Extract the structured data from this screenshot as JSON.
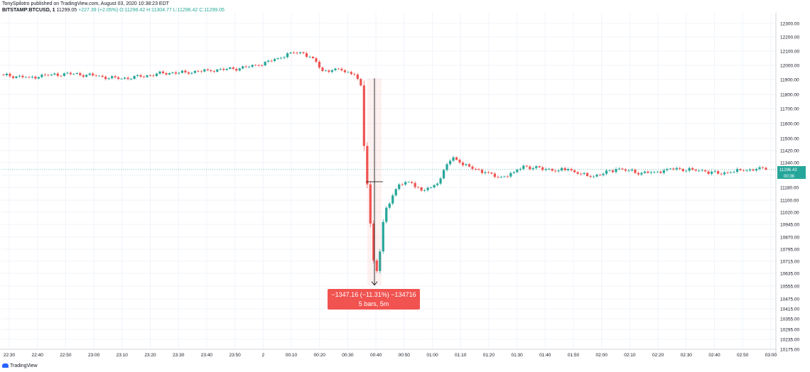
{
  "header": {
    "line1": "TonySpilotro published on TradingView.com, August 03, 2020 10:38:23 EDT",
    "symbol": "BITSTAMP:BTCUSD, 1",
    "last": "11299.05",
    "change": "+227.39 (+2.05%)",
    "ohlc": "O:11296.42 H:11304.77 L:11296.42 C:11299.05"
  },
  "measure": {
    "line1": "−1347.16 (−11.31%) −134716",
    "line2": "5 bars, 5m"
  },
  "price_tags": {
    "current": "11296.43",
    "countdown": "00:36"
  },
  "footer": {
    "brand": "TradingView"
  },
  "colors": {
    "up": "#26a69a",
    "down": "#ef5350",
    "measure_bg": "#f05350"
  },
  "chart_data": {
    "type": "candlestick",
    "y_ticks": [
      12300,
      12200,
      12100,
      12000,
      11900,
      11800,
      11700,
      11600,
      11500,
      11420,
      11340,
      11260,
      11180,
      11100,
      11020,
      10945,
      10870,
      10795,
      10715,
      10635,
      10555,
      10475,
      10415,
      10355,
      10295,
      10235,
      10175
    ],
    "y_tick_labels": [
      "12300.00",
      "12200.00",
      "12100.00",
      "12000.00",
      "11900.00",
      "11800.00",
      "11700.00",
      "11600.00",
      "11500.00",
      "11420.00",
      "11340.00",
      "11260.00",
      "11180.00",
      "11100.00",
      "11020.00",
      "10945.00",
      "10870.00",
      "10795.00",
      "10715.00",
      "10635.00",
      "10555.00",
      "10475.00",
      "10415.00",
      "10355.00",
      "10295.00",
      "10235.00",
      "10175.00"
    ],
    "x_tick_labels": [
      "22:30",
      "22:40",
      "22:50",
      "23:00",
      "23:10",
      "23:20",
      "23:30",
      "23:40",
      "23:50",
      "2",
      "00:10",
      "00:20",
      "00:30",
      "00:40",
      "00:50",
      "01:00",
      "01:10",
      "01:20",
      "01:30",
      "01:40",
      "01:50",
      "02:00",
      "02:10",
      "02:20",
      "02:30",
      "02:40",
      "02:50",
      "03:00"
    ],
    "price_anchors": [
      [
        0,
        11930
      ],
      [
        8,
        11915
      ],
      [
        15,
        11935
      ],
      [
        22,
        11940
      ],
      [
        29,
        11925
      ],
      [
        36,
        11905
      ],
      [
        43,
        11920
      ],
      [
        50,
        11945
      ],
      [
        57,
        11950
      ],
      [
        64,
        11965
      ],
      [
        72,
        11975
      ],
      [
        80,
        12000
      ],
      [
        86,
        12050
      ],
      [
        90,
        12090
      ],
      [
        94,
        12085
      ],
      [
        97,
        12050
      ],
      [
        100,
        11960
      ],
      [
        103,
        11965
      ],
      [
        106,
        11965
      ],
      [
        110,
        11935
      ],
      [
        112,
        11860
      ],
      [
        113,
        11450
      ],
      [
        114,
        11200
      ],
      [
        115,
        10950
      ],
      [
        116,
        10720
      ],
      [
        117,
        10650
      ],
      [
        118,
        10780
      ],
      [
        119,
        10960
      ],
      [
        120,
        11050
      ],
      [
        122,
        11130
      ],
      [
        124,
        11200
      ],
      [
        128,
        11210
      ],
      [
        131,
        11160
      ],
      [
        134,
        11180
      ],
      [
        137,
        11240
      ],
      [
        139,
        11330
      ],
      [
        141,
        11375
      ],
      [
        143,
        11340
      ],
      [
        147,
        11300
      ],
      [
        151,
        11280
      ],
      [
        154,
        11250
      ],
      [
        156,
        11250
      ],
      [
        160,
        11280
      ],
      [
        163,
        11320
      ],
      [
        166,
        11305
      ],
      [
        170,
        11300
      ],
      [
        174,
        11290
      ],
      [
        177,
        11300
      ],
      [
        180,
        11270
      ],
      [
        184,
        11250
      ],
      [
        188,
        11270
      ],
      [
        192,
        11300
      ],
      [
        196,
        11290
      ],
      [
        200,
        11275
      ],
      [
        204,
        11280
      ],
      [
        208,
        11300
      ],
      [
        212,
        11300
      ],
      [
        216,
        11295
      ],
      [
        220,
        11285
      ],
      [
        224,
        11270
      ],
      [
        228,
        11280
      ],
      [
        232,
        11290
      ],
      [
        236,
        11300
      ],
      [
        239,
        11296
      ]
    ],
    "measure_from": 11908,
    "measure_to": 10561,
    "grid": "on"
  }
}
